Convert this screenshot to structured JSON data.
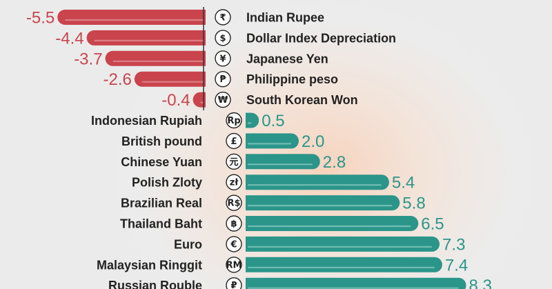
{
  "colors": {
    "negative": "#c9444d",
    "positive": "#2b958a",
    "highlight_negative": "#dc7f86",
    "highlight_positive": "#73bcb2"
  },
  "chart_data": {
    "type": "bar",
    "orientation": "horizontal",
    "categories": [
      "Indian Rupee",
      "Dollar Index Depreciation",
      "Japanese Yen",
      "Philippine peso",
      "South Korean Won",
      "Indonesian Rupiah",
      "British pound",
      "Chinese Yuan",
      "Polish Zloty",
      "Brazilian Real",
      "Thailand Baht",
      "Euro",
      "Malaysian Ringgit",
      "Russian Rouble"
    ],
    "symbols": [
      "₹",
      "$",
      "¥",
      "₱",
      "₩",
      "Rp",
      "£",
      "元",
      "zł",
      "R$",
      "฿",
      "€",
      "RM",
      "₽"
    ],
    "values": [
      -5.5,
      -4.4,
      -3.7,
      -2.6,
      -0.4,
      0.5,
      2.0,
      2.8,
      5.4,
      5.8,
      6.5,
      7.3,
      7.4,
      8.3
    ],
    "value_labels": [
      "-5.5",
      "-4.4",
      "-3.7",
      "-2.6",
      "-0.4",
      "0.5",
      "2.0",
      "2.8",
      "5.4",
      "5.8",
      "6.5",
      "7.3",
      "7.4",
      "8.3"
    ],
    "title": "",
    "xlabel": "",
    "ylabel": "",
    "grid": false,
    "legend": "none"
  }
}
